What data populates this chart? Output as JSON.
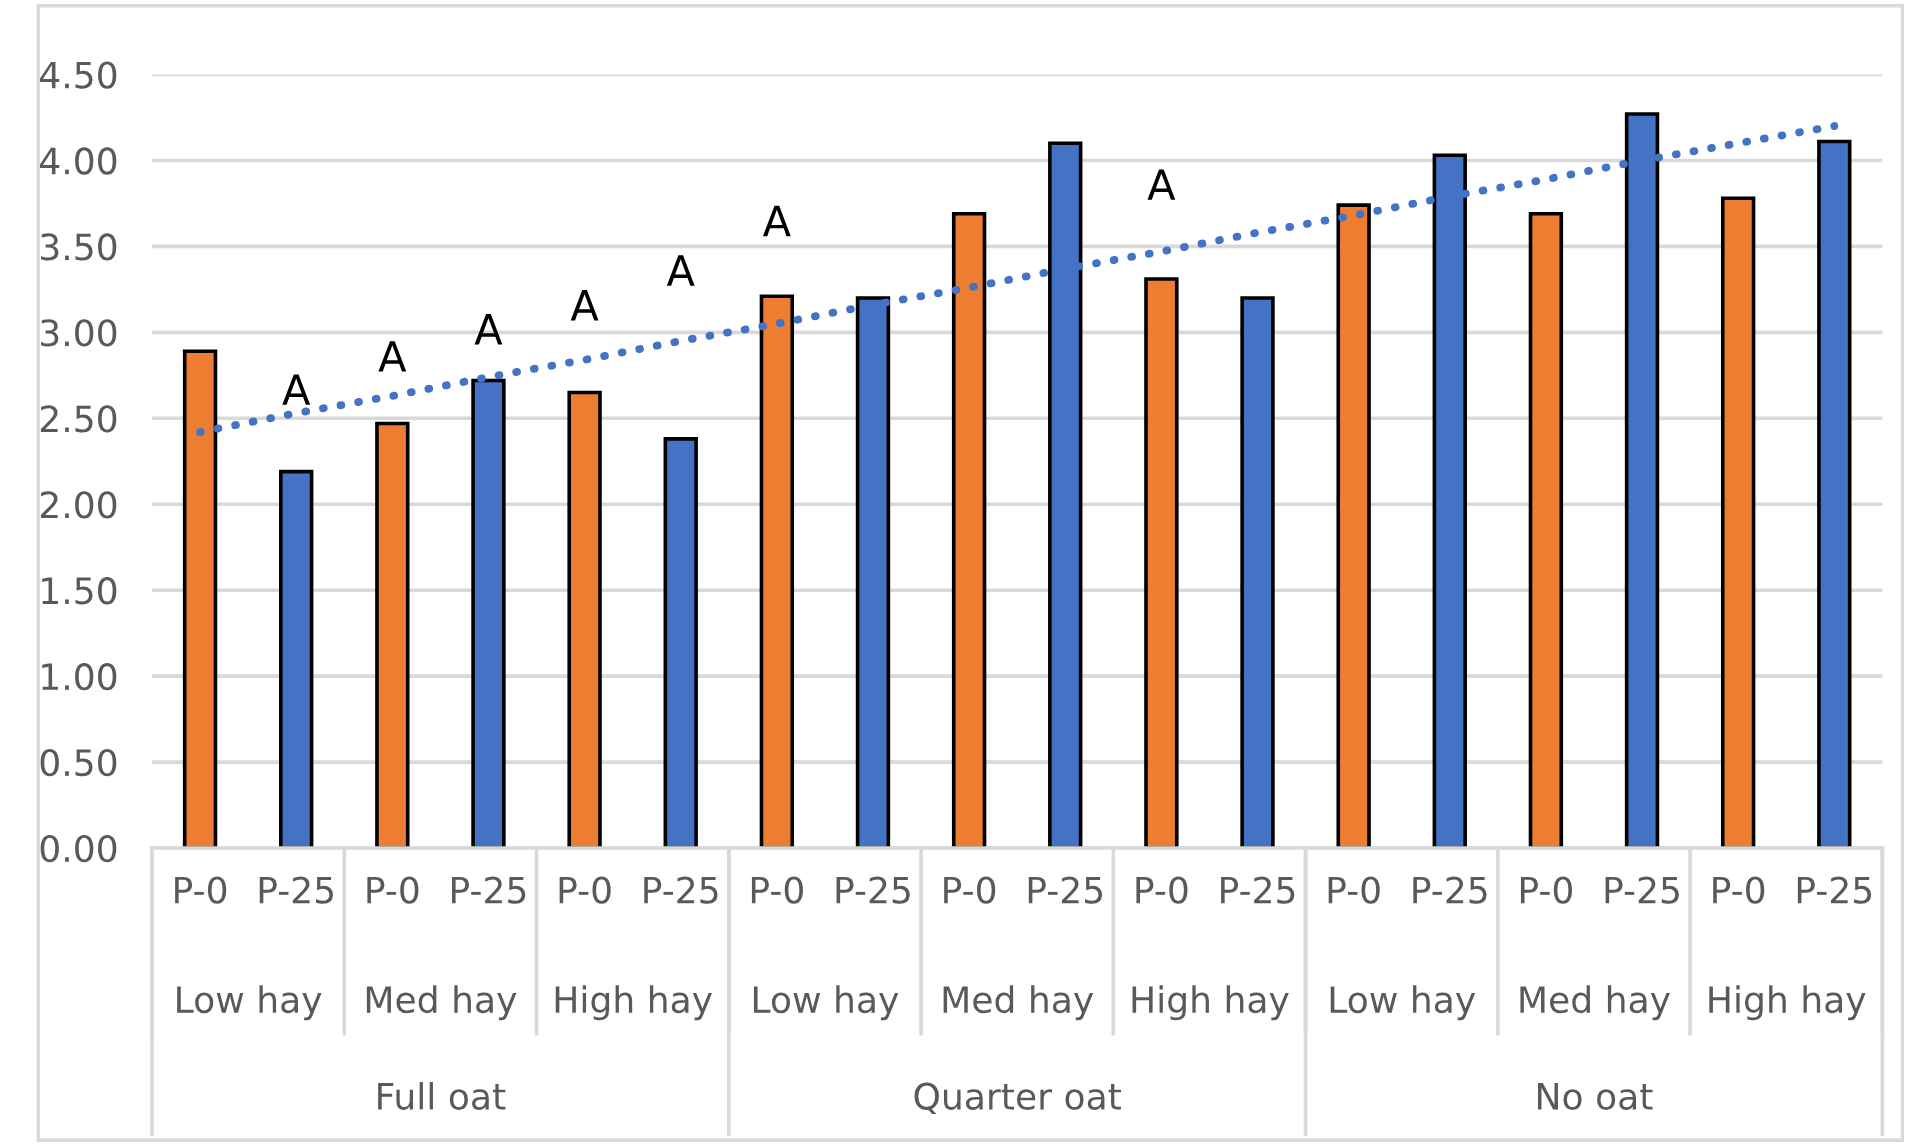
{
  "chart_data": {
    "type": "bar",
    "categories": [
      "P-0",
      "P-25",
      "P-0",
      "P-25",
      "P-0",
      "P-25",
      "P-0",
      "P-25",
      "P-0",
      "P-25",
      "P-0",
      "P-25",
      "P-0",
      "P-25",
      "P-0",
      "P-25",
      "P-0",
      "P-25"
    ],
    "series": [
      {
        "colors": [
          "#ed7d31",
          "#4472c4",
          "#ed7d31",
          "#4472c4",
          "#ed7d31",
          "#4472c4",
          "#ed7d31",
          "#4472c4",
          "#ed7d31",
          "#4472c4",
          "#ed7d31",
          "#4472c4",
          "#ed7d31",
          "#4472c4",
          "#ed7d31",
          "#4472c4",
          "#ed7d31",
          "#4472c4"
        ],
        "values": [
          2.89,
          2.19,
          2.47,
          2.72,
          2.65,
          2.38,
          3.21,
          3.2,
          3.69,
          4.1,
          3.31,
          3.2,
          3.74,
          4.03,
          3.69,
          4.27,
          3.78,
          4.11
        ]
      },
      {
        "type": "line",
        "color": "#4472c4",
        "line_style": "dotted",
        "values": [
          2.42,
          2.53,
          2.63,
          2.74,
          2.84,
          2.95,
          3.05,
          3.16,
          3.26,
          3.37,
          3.47,
          3.58,
          3.68,
          3.79,
          3.89,
          4.0,
          4.1,
          4.2
        ]
      }
    ],
    "ylim": [
      0,
      4.5
    ],
    "yticks": [
      {
        "value": 0,
        "label": "0.00"
      },
      {
        "value": 0.5,
        "label": "0.50"
      },
      {
        "value": 1,
        "label": "1.00"
      },
      {
        "value": 1.5,
        "label": "1.50"
      },
      {
        "value": 2,
        "label": "2.00"
      },
      {
        "value": 2.5,
        "label": "2.50"
      },
      {
        "value": 3,
        "label": "3.00"
      },
      {
        "value": 3.5,
        "label": "3.50"
      },
      {
        "value": 4,
        "label": "4.00"
      },
      {
        "value": 4.5,
        "label": "4.50"
      }
    ],
    "grid": "y",
    "legend": false,
    "annotations": [
      "A",
      "A",
      "A",
      "A",
      "A",
      "A",
      "A",
      "Low hay",
      "Med hay",
      "High hay",
      "Low hay",
      "Med hay",
      "High hay",
      "Low hay",
      "Med hay",
      "High hay",
      "Full oat",
      "Quarter oat",
      "No oat"
    ]
  }
}
